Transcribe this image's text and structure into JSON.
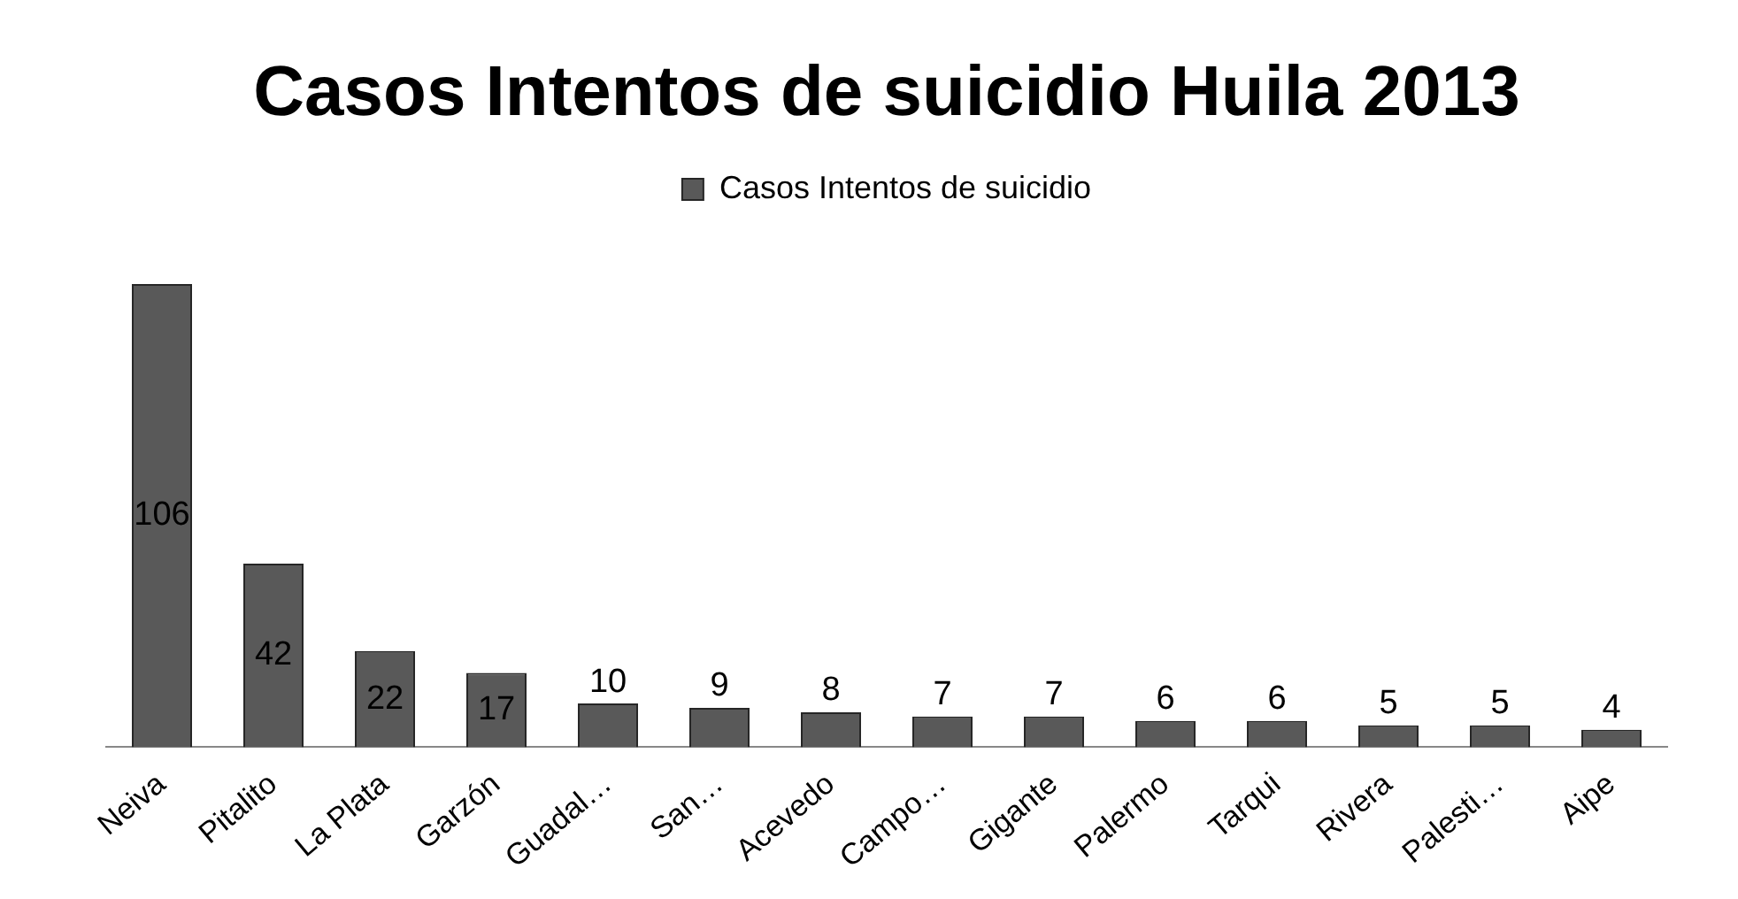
{
  "chart_data": {
    "type": "bar",
    "title": "Casos Intentos de suicidio Huila 2013",
    "categories": [
      "Neiva",
      "Pitalito",
      "La Plata",
      "Garzón",
      "Guadal…",
      "San…",
      "Acevedo",
      "Campo…",
      "Gigante",
      "Palermo",
      "Tarqui",
      "Rivera",
      "Palesti…",
      "Aipe"
    ],
    "series": [
      {
        "name": "Casos Intentos de suicidio",
        "color": "#595959",
        "values": [
          106,
          42,
          22,
          17,
          10,
          9,
          8,
          7,
          7,
          6,
          6,
          5,
          5,
          4
        ]
      }
    ],
    "data_labels": true,
    "legend": "top",
    "grid": false
  }
}
